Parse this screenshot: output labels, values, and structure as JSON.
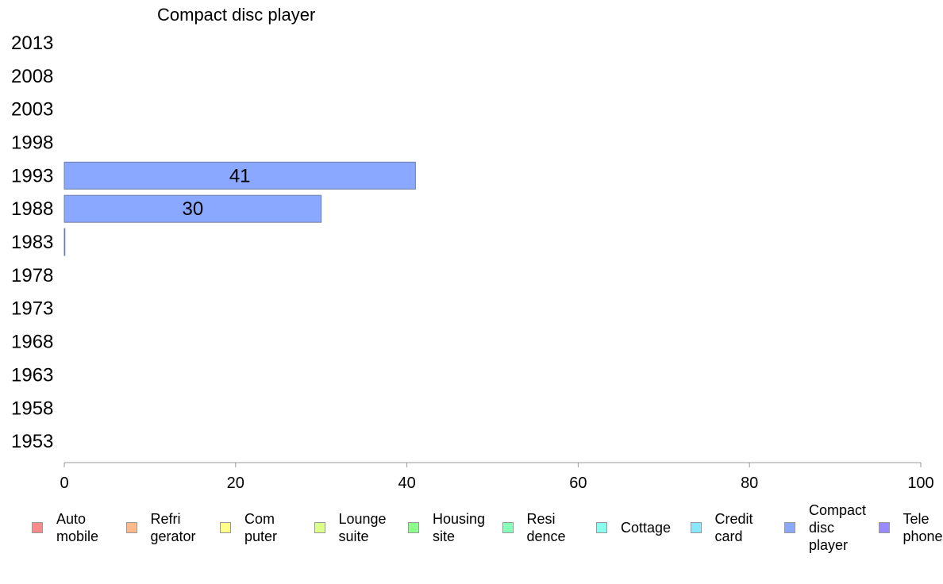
{
  "chart_data": {
    "type": "bar",
    "orientation": "horizontal",
    "title": "Compact disc player",
    "categories": [
      "2013",
      "2008",
      "2003",
      "1998",
      "1993",
      "1988",
      "1983",
      "1978",
      "1973",
      "1968",
      "1963",
      "1958",
      "1953"
    ],
    "series": [
      {
        "name": "Compact disc player",
        "color": "#8aa8ff",
        "values": [
          null,
          null,
          null,
          null,
          41,
          30,
          0,
          null,
          null,
          null,
          null,
          null,
          null
        ],
        "data_labels": [
          "",
          "",
          "",
          "",
          "41",
          "30",
          "",
          "",
          "",
          "",
          "",
          "",
          ""
        ]
      }
    ],
    "xlim": [
      0,
      100
    ],
    "xticks": [
      "0",
      "20",
      "40",
      "60",
      "80",
      "100"
    ],
    "xlabel": "",
    "ylabel": "",
    "grid": false,
    "legend_position": "bottom",
    "legend": [
      {
        "label": "Auto\nmobile",
        "color": "#ff8a8a"
      },
      {
        "label": "Refri\ngerator",
        "color": "#ffb98a"
      },
      {
        "label": "Com\nputer",
        "color": "#ffff8a"
      },
      {
        "label": "Lounge\nsuite",
        "color": "#dcff8a"
      },
      {
        "label": "Housing\nsite",
        "color": "#8aff8a"
      },
      {
        "label": "Resi\ndence",
        "color": "#8affb9"
      },
      {
        "label": "Cottage",
        "color": "#8affed"
      },
      {
        "label": "Credit\ncard",
        "color": "#8ae8ff"
      },
      {
        "label": "Compact\ndisc\nplayer",
        "color": "#8aa8ff"
      },
      {
        "label": "Tele\nphone",
        "color": "#9a8aff"
      }
    ]
  }
}
